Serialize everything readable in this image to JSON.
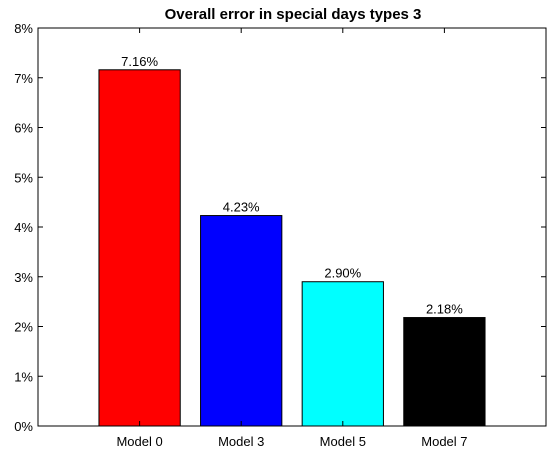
{
  "chart_data": {
    "type": "bar",
    "title": "Overall error in special days types 3",
    "xlabel": "",
    "ylabel": "",
    "categories": [
      "Model 0",
      "Model 3",
      "Model 5",
      "Model 7"
    ],
    "values": [
      7.16,
      4.23,
      2.9,
      2.18
    ],
    "data_labels": [
      "7.16%",
      "4.23%",
      "2.90%",
      "2.18%"
    ],
    "bar_colors": [
      "#ff0000",
      "#0000ff",
      "#00ffff",
      "#000000"
    ],
    "ylim": [
      0,
      8
    ],
    "yticks": [
      0,
      1,
      2,
      3,
      4,
      5,
      6,
      7,
      8
    ],
    "ytick_labels": [
      "0%",
      "1%",
      "2%",
      "3%",
      "4%",
      "5%",
      "6%",
      "7%",
      "8%"
    ],
    "grid": false,
    "legend": "none"
  }
}
